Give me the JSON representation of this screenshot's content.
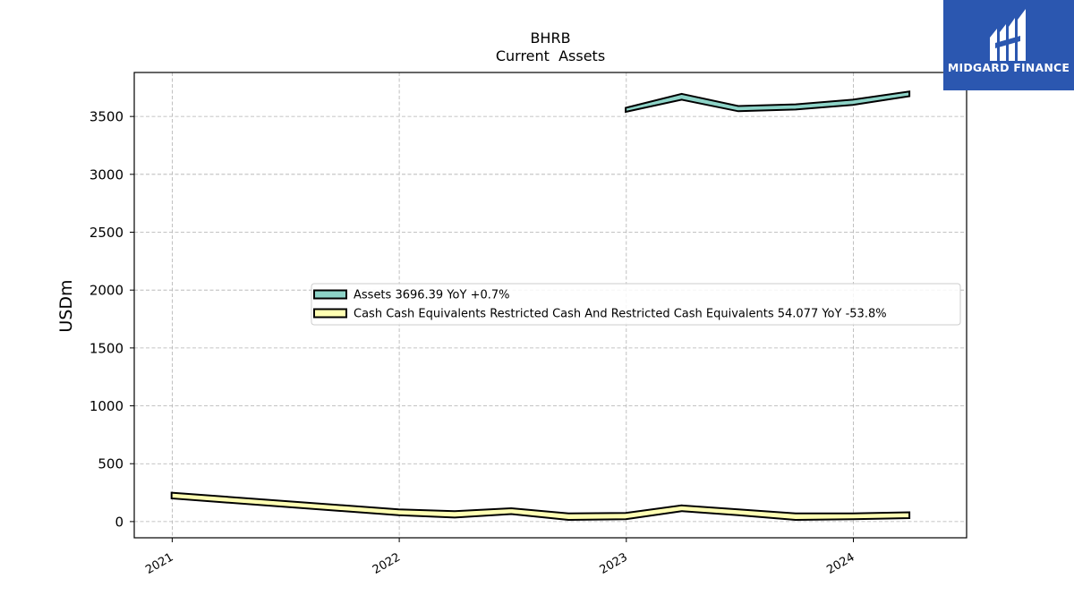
{
  "chart_data": {
    "type": "area",
    "title": "BHRB",
    "subtitle": "Current  Assets",
    "ylabel": "USDm",
    "xlabel": "",
    "ylim": [
      -140,
      3880
    ],
    "xlim": [
      "2020-11-01",
      "2024-07-01"
    ],
    "yticks": [
      0,
      500,
      1000,
      1500,
      2000,
      2500,
      3000,
      3500
    ],
    "xticks": [
      "2021-01-01",
      "2022-01-01",
      "2023-01-01",
      "2024-01-01"
    ],
    "xtick_labels": [
      "2021",
      "2022",
      "2023",
      "2024"
    ],
    "grid": true,
    "legend_position": "center",
    "series": [
      {
        "name": "Assets  3696.39 YoY +0.7%",
        "color": "#8dd3c7",
        "x": [
          "2022-12-31",
          "2023-03-31",
          "2023-06-30",
          "2023-09-30",
          "2023-12-31",
          "2024-03-31"
        ],
        "upper": [
          3575,
          3695,
          3590,
          3605,
          3645,
          3715
        ],
        "lower": [
          3540,
          3645,
          3545,
          3560,
          3600,
          3675
        ]
      },
      {
        "name": "Cash Cash Equivalents Restricted Cash And Restricted Cash Equivalents  54.077 YoY -53.8%",
        "color": "#ffffb3",
        "x": [
          "2020-12-31",
          "2021-12-31",
          "2022-03-31",
          "2022-06-30",
          "2022-09-30",
          "2022-12-31",
          "2023-03-31",
          "2023-06-30",
          "2023-09-30",
          "2023-12-31",
          "2024-03-31"
        ],
        "upper": [
          250,
          105,
          90,
          115,
          70,
          75,
          140,
          105,
          70,
          70,
          80
        ],
        "lower": [
          200,
          55,
          35,
          65,
          15,
          20,
          90,
          55,
          15,
          20,
          30
        ]
      }
    ]
  },
  "logo": {
    "text": "MIDGARD FINANCE",
    "bg_color": "#2b57b0"
  }
}
